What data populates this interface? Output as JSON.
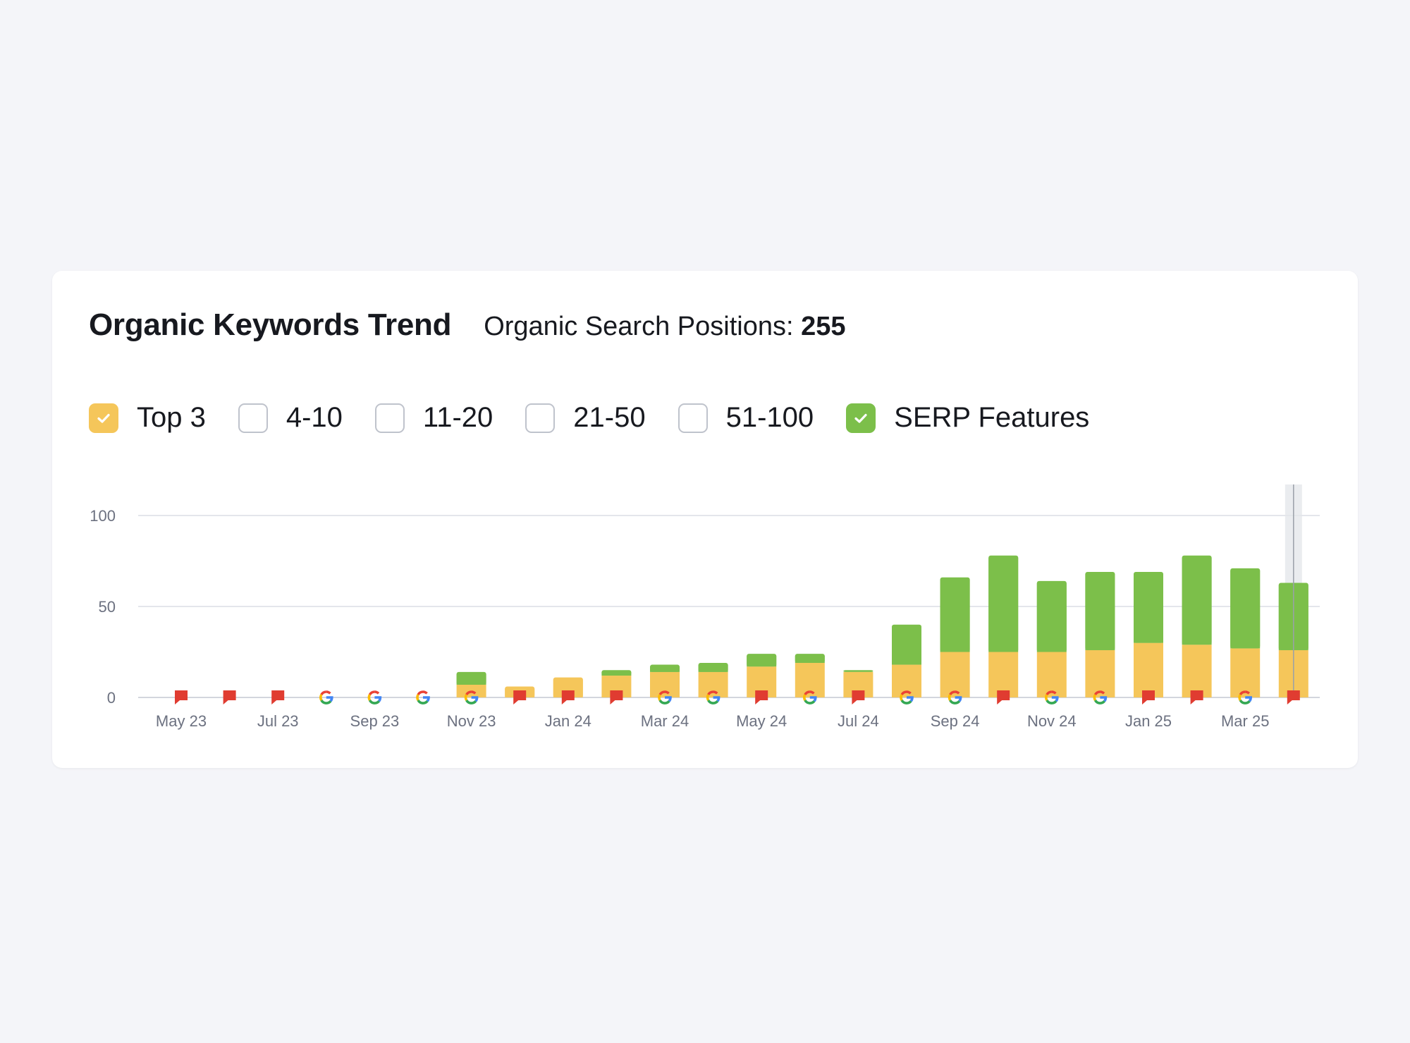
{
  "header": {
    "title": "Organic Keywords Trend",
    "positions_label": "Organic Search Positions:",
    "positions_value": "255"
  },
  "filters": [
    {
      "label": "Top 3",
      "checked": true,
      "color": "#f5c65a"
    },
    {
      "label": "4-10",
      "checked": false,
      "color": "#bfc3cc"
    },
    {
      "label": "11-20",
      "checked": false,
      "color": "#bfc3cc"
    },
    {
      "label": "21-50",
      "checked": false,
      "color": "#bfc3cc"
    },
    {
      "label": "51-100",
      "checked": false,
      "color": "#bfc3cc"
    },
    {
      "label": "SERP Features",
      "checked": true,
      "color": "#7cbf4a"
    }
  ],
  "chart_data": {
    "type": "bar",
    "stacked": true,
    "categories": [
      "May 23",
      "Jun 23",
      "Jul 23",
      "Aug 23",
      "Sep 23",
      "Oct 23",
      "Nov 23",
      "Dec 23",
      "Jan 24",
      "Feb 24",
      "Mar 24",
      "Apr 24",
      "May 24",
      "Jun 24",
      "Jul 24",
      "Aug 24",
      "Sep 24",
      "Oct 24",
      "Nov 24",
      "Dec 24",
      "Jan 25",
      "Feb 25",
      "Mar 25",
      "Apr 25"
    ],
    "x_tick_labels": [
      "May 23",
      "Jul 23",
      "Sep 23",
      "Nov 23",
      "Jan 24",
      "Mar 24",
      "May 24",
      "Jul 24",
      "Sep 24",
      "Nov 24",
      "Jan 25",
      "Mar 25"
    ],
    "series": [
      {
        "key": "top3",
        "color": "#f5c65a",
        "values": [
          0,
          0,
          0,
          0,
          0,
          0,
          7,
          6,
          11,
          12,
          14,
          14,
          17,
          19,
          14,
          18,
          25,
          25,
          25,
          26,
          30,
          29,
          27,
          26
        ]
      },
      {
        "key": "serp",
        "color": "#7cbf4a",
        "values": [
          0,
          0,
          0,
          0,
          0,
          0,
          7,
          0,
          0,
          3,
          4,
          5,
          7,
          5,
          1,
          22,
          41,
          53,
          39,
          43,
          39,
          49,
          44,
          37
        ]
      }
    ],
    "ylim": [
      0,
      100
    ],
    "y_ticks": [
      0,
      50,
      100
    ],
    "grid": true,
    "markers": [
      "flag",
      "flag",
      "flag",
      "google",
      "google",
      "google",
      "google",
      "flag",
      "flag",
      "flag",
      "google",
      "google",
      "flag",
      "google",
      "flag",
      "google",
      "google",
      "flag",
      "google",
      "google",
      "flag",
      "flag",
      "google",
      "flag"
    ],
    "highlight_index": 23,
    "marker_colors": {
      "flag": "#e03c31",
      "google_blue": "#4285f4",
      "google_red": "#ea4335",
      "google_yellow": "#fbbc05",
      "google_green": "#34a853"
    }
  }
}
